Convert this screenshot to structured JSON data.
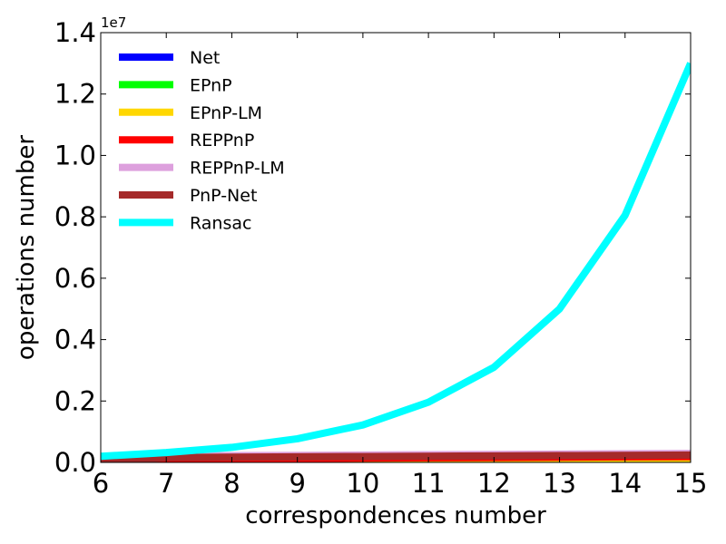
{
  "chart_data": {
    "type": "line",
    "xlabel": "correspondences number",
    "ylabel": "operations number",
    "y_offset_label": "1e7",
    "x": [
      6,
      7,
      8,
      9,
      10,
      11,
      12,
      13,
      14,
      15
    ],
    "xlim": [
      6,
      15
    ],
    "ylim": [
      0,
      14000000
    ],
    "x_ticks": [
      "6",
      "7",
      "8",
      "9",
      "10",
      "11",
      "12",
      "13",
      "14",
      "15"
    ],
    "y_ticks": [
      "0.0",
      "0.2",
      "0.4",
      "0.6",
      "0.8",
      "1.0",
      "1.2",
      "1.4"
    ],
    "legend_position": "top-left",
    "series": [
      {
        "name": "Net",
        "color": "#0000ff",
        "values": [
          15000,
          16000,
          17000,
          18000,
          19000,
          20000,
          21000,
          22000,
          23000,
          24000
        ]
      },
      {
        "name": "EPnP",
        "color": "#00ff00",
        "values": [
          40000,
          45000,
          50000,
          55000,
          60000,
          65000,
          70000,
          75000,
          80000,
          85000
        ]
      },
      {
        "name": "EPnP-LM",
        "color": "#ffd700",
        "values": [
          60000,
          66000,
          72000,
          78000,
          84000,
          90000,
          96000,
          102000,
          108000,
          114000
        ]
      },
      {
        "name": "REPPnP",
        "color": "#ff0000",
        "values": [
          100000,
          110000,
          120000,
          130000,
          140000,
          150000,
          160000,
          170000,
          180000,
          190000
        ]
      },
      {
        "name": "REPPnP-LM",
        "color": "#dda0dd",
        "values": [
          200000,
          210000,
          220000,
          230000,
          240000,
          250000,
          260000,
          270000,
          280000,
          290000
        ]
      },
      {
        "name": "PnP-Net",
        "color": "#a52a2a",
        "values": [
          0,
          160000,
          170000,
          180000,
          190000,
          200000,
          210000,
          220000,
          230000,
          240000
        ]
      },
      {
        "name": "Ransac",
        "color": "#00ffff",
        "values": [
          200000,
          320000,
          490000,
          770000,
          1220000,
          1960000,
          3100000,
          5000000,
          8050000,
          13000000
        ]
      }
    ]
  }
}
